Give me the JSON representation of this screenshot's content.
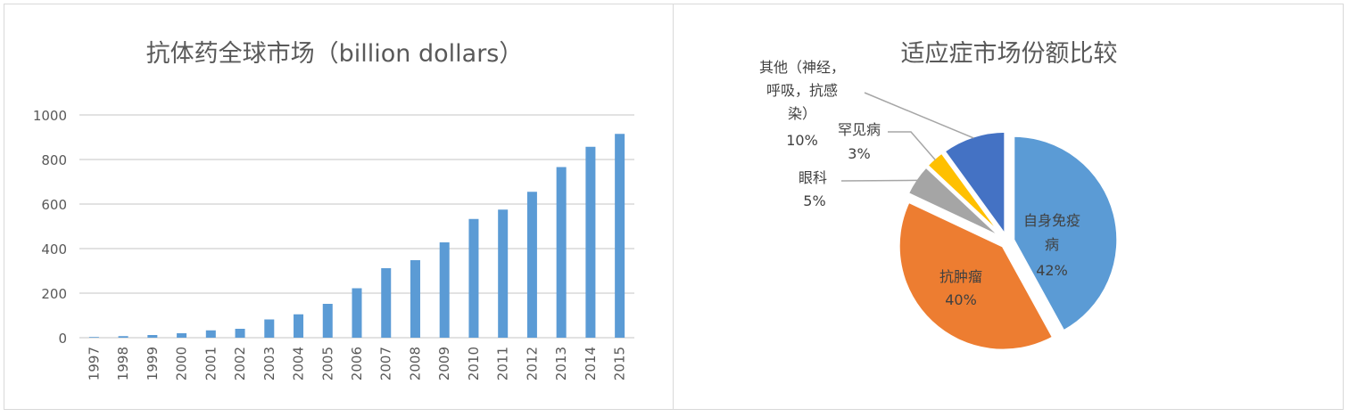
{
  "chart_data": [
    {
      "type": "bar",
      "title": "抗体药全球市场（billion dollars）",
      "xlabel": "",
      "ylabel": "",
      "ylim": [
        0,
        1000
      ],
      "yticks": [
        0,
        200,
        400,
        600,
        800,
        1000
      ],
      "grid": true,
      "color": "#5b9bd5",
      "categories": [
        "1997",
        "1998",
        "1999",
        "2000",
        "2001",
        "2002",
        "2003",
        "2004",
        "2005",
        "2006",
        "2007",
        "2008",
        "2009",
        "2010",
        "2011",
        "2012",
        "2013",
        "2014",
        "2015"
      ],
      "values": [
        3,
        7,
        12,
        20,
        33,
        40,
        82,
        105,
        152,
        222,
        312,
        348,
        428,
        533,
        575,
        655,
        766,
        857,
        915
      ]
    },
    {
      "type": "pie",
      "title": "适应症市场份额比较",
      "slices": [
        {
          "label": "自身免疫病",
          "value": 42,
          "text": "42%",
          "color": "#5b9bd5",
          "label_lines": [
            "自身免疫",
            "病"
          ]
        },
        {
          "label": "抗肿瘤",
          "value": 40,
          "text": "40%",
          "color": "#ed7d31",
          "label_lines": [
            "抗肿瘤"
          ]
        },
        {
          "label": "眼科",
          "value": 5,
          "text": "5%",
          "color": "#a5a5a5",
          "label_lines": [
            "眼科"
          ]
        },
        {
          "label": "罕见病",
          "value": 3,
          "text": "3%",
          "color": "#ffc000",
          "label_lines": [
            "罕见病"
          ]
        },
        {
          "label": "其他（神经，呼吸，抗感染）",
          "value": 10,
          "text": "10%",
          "color": "#4472c4",
          "label_lines": [
            "其他（神经，",
            "呼吸，抗感",
            "染）"
          ]
        }
      ]
    }
  ]
}
